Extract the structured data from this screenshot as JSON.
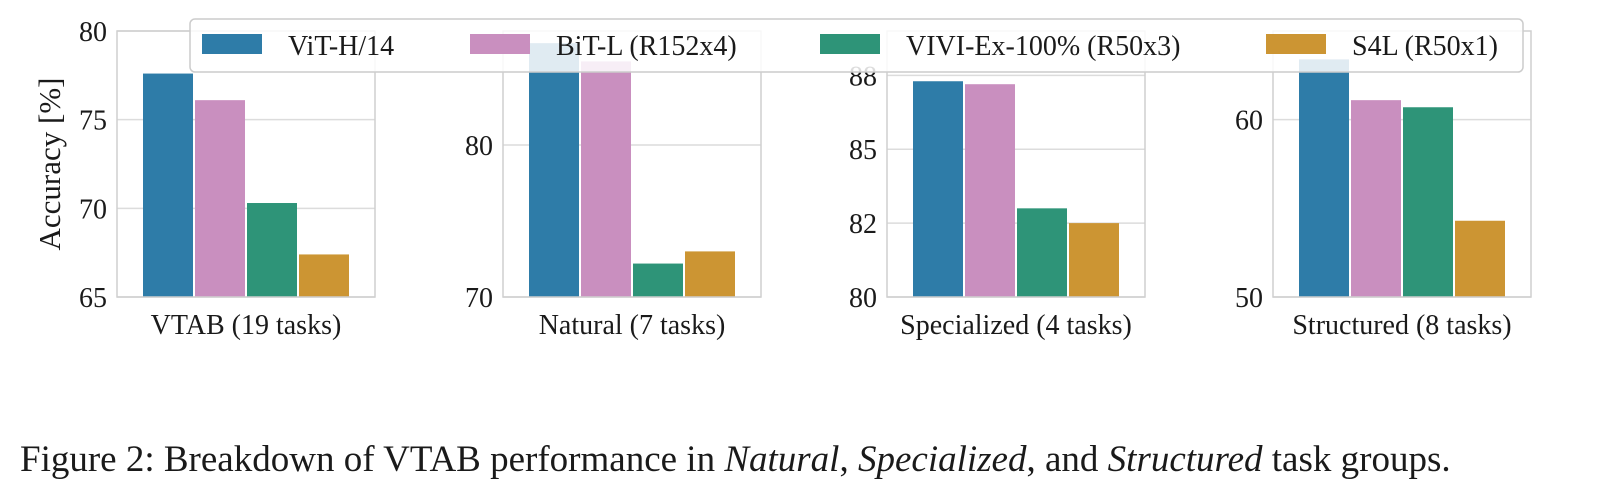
{
  "chart_data": {
    "type": "bar",
    "ylabel": "Accuracy [%]",
    "legend_position": "top",
    "grid": true,
    "legend": [
      {
        "name": "ViT-H/14",
        "color": "#2e7ca8"
      },
      {
        "name": "BiT-L (R152x4)",
        "color": "#c98fbf"
      },
      {
        "name": "VIVI-Ex-100% (R50x3)",
        "color": "#2e9478"
      },
      {
        "name": "S4L (R50x1)",
        "color": "#cc9533"
      }
    ],
    "panels": [
      {
        "xlabel": "VTAB (19 tasks)",
        "ylim": [
          65,
          80
        ],
        "ticks": [
          65,
          70,
          75,
          80
        ],
        "values": [
          77.6,
          76.1,
          70.3,
          67.4
        ]
      },
      {
        "xlabel": "Natural (7 tasks)",
        "ylim": [
          70,
          87.5
        ],
        "ticks": [
          70,
          80
        ],
        "values": [
          86.7,
          85.5,
          72.2,
          73.0
        ]
      },
      {
        "xlabel": "Specialized (4 tasks)",
        "ylim": [
          80,
          89
        ],
        "ticks": [
          80,
          82,
          85,
          88
        ],
        "tick_labels": [
          "80",
          "82",
          "85",
          "88"
        ],
        "tick_positions": [
          80,
          82.5,
          85,
          87.5
        ],
        "values": [
          87.3,
          87.2,
          83.0,
          82.5
        ]
      },
      {
        "xlabel": "Structured (8 tasks)",
        "ylim": [
          50,
          65
        ],
        "ticks": [
          50,
          60
        ],
        "values": [
          63.4,
          61.1,
          60.7,
          54.3
        ]
      }
    ]
  },
  "caption": {
    "prefix": "Figure 2: Breakdown of VTAB performance in ",
    "natural": "Natural",
    "sep1": ", ",
    "specialized": "Specialized",
    "sep2": ", and ",
    "structured": "Structured",
    "suffix": " task groups."
  }
}
